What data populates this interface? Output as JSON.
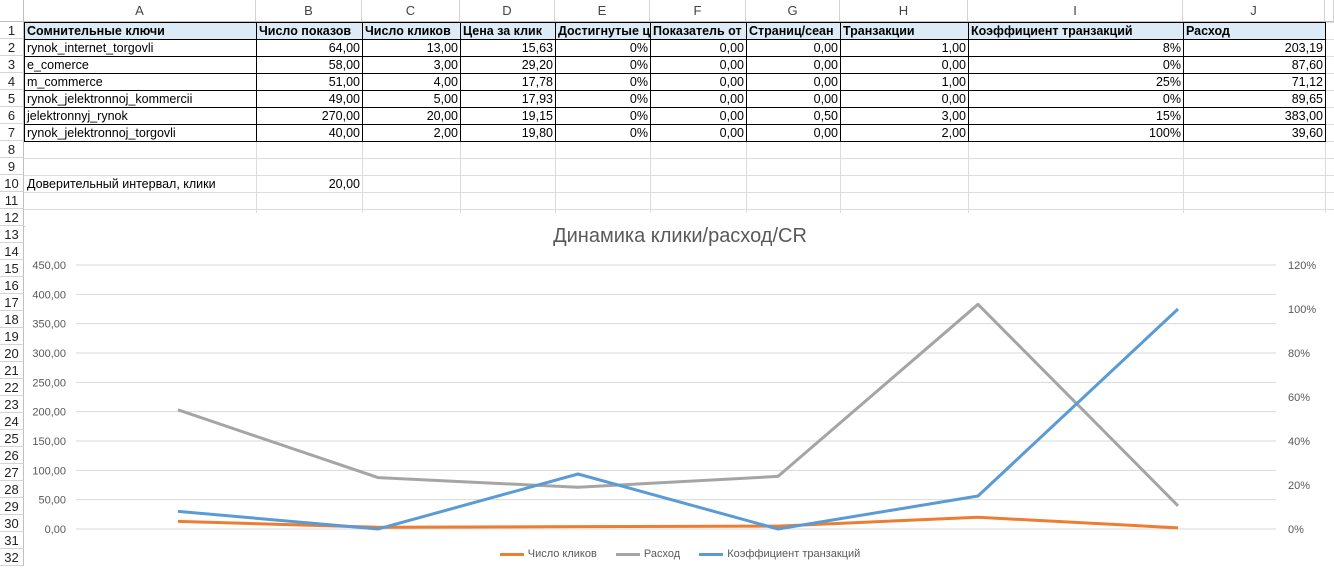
{
  "columns": [
    "A",
    "B",
    "C",
    "D",
    "E",
    "F",
    "G",
    "H",
    "I",
    "J"
  ],
  "rows": [
    "1",
    "2",
    "3",
    "4",
    "5",
    "6",
    "7",
    "8",
    "9",
    "10",
    "11",
    "12",
    "13",
    "14",
    "15",
    "16",
    "17",
    "18",
    "19",
    "20",
    "21",
    "22",
    "23",
    "24",
    "25",
    "26",
    "27",
    "28",
    "29",
    "30",
    "31",
    "32"
  ],
  "table": {
    "headers": [
      "Сомнительные ключи",
      "Число показов",
      "Число кликов",
      "Цена за клик",
      "Достигнутые ц",
      "Показатель от",
      "Страниц/сеан",
      "Транзакции",
      "Коэффициент транзакций",
      "Расход"
    ],
    "data": [
      [
        "rynok_internet_torgovli",
        "64,00",
        "13,00",
        "15,63",
        "0%",
        "0,00",
        "0,00",
        "1,00",
        "8%",
        "203,19"
      ],
      [
        "e_comerce",
        "58,00",
        "3,00",
        "29,20",
        "0%",
        "0,00",
        "0,00",
        "0,00",
        "0%",
        "87,60"
      ],
      [
        "m_commerce",
        "51,00",
        "4,00",
        "17,78",
        "0%",
        "0,00",
        "0,00",
        "1,00",
        "25%",
        "71,12"
      ],
      [
        "rynok_jelektronnoj_kommercii",
        "49,00",
        "5,00",
        "17,93",
        "0%",
        "0,00",
        "0,00",
        "0,00",
        "0%",
        "89,65"
      ],
      [
        "jelektronnyj_rynok",
        "270,00",
        "20,00",
        "19,15",
        "0%",
        "0,00",
        "0,50",
        "3,00",
        "15%",
        "383,00"
      ],
      [
        "rynok_jelektronnoj_torgovli",
        "40,00",
        "2,00",
        "19,80",
        "0%",
        "0,00",
        "0,00",
        "2,00",
        "100%",
        "39,60"
      ]
    ]
  },
  "extra": {
    "a10": "Доверительный интервал, клики",
    "b10": "20,00"
  },
  "chart_data": {
    "type": "line",
    "title": "Динамика клики/расход/CR",
    "x": [
      1,
      2,
      3,
      4,
      5,
      6
    ],
    "series": [
      {
        "name": "Число кликов",
        "values": [
          13,
          3,
          4,
          5,
          20,
          2
        ],
        "axis": "left",
        "color": "#ed7d31"
      },
      {
        "name": "Расход",
        "values": [
          203.19,
          87.6,
          71.12,
          89.65,
          383,
          39.6
        ],
        "axis": "left",
        "color": "#a5a5a5"
      },
      {
        "name": "Коэффициент транзакций",
        "values": [
          0.08,
          0,
          0.25,
          0,
          0.15,
          1.0
        ],
        "axis": "right",
        "color": "#5b9bd5"
      }
    ],
    "ylim": [
      0,
      450
    ],
    "y2lim": [
      0,
      1.2
    ],
    "yticks": [
      "450,00",
      "400,00",
      "350,00",
      "300,00",
      "250,00",
      "200,00",
      "150,00",
      "100,00",
      "50,00",
      "0,00"
    ],
    "y2ticks": [
      "120%",
      "100%",
      "80%",
      "60%",
      "40%",
      "20%",
      "0%"
    ],
    "grid": true,
    "legend": "bottom"
  }
}
